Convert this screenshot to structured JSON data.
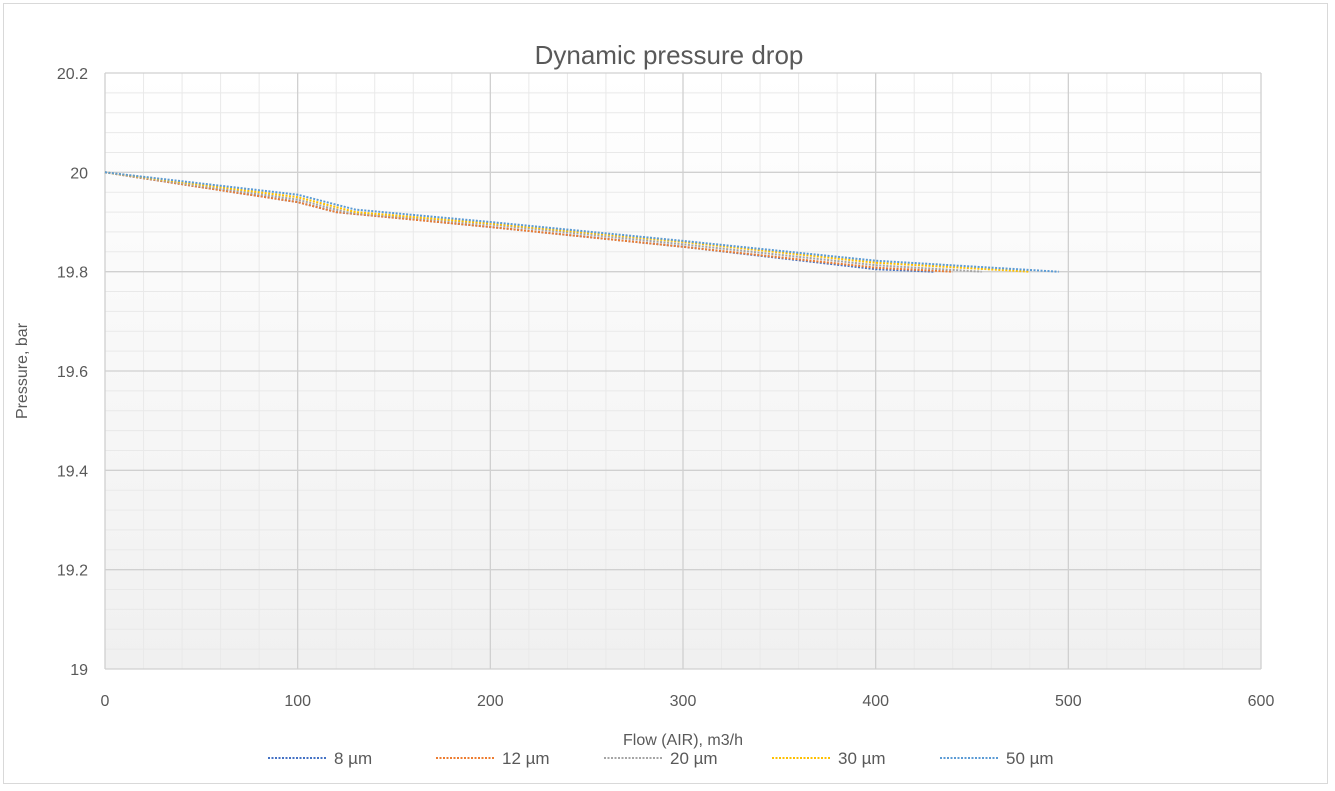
{
  "chart_data": {
    "type": "line",
    "title": "Dynamic pressure drop",
    "xlabel": "Flow (AIR), m3/h",
    "ylabel": "Pressure, bar",
    "xlim": [
      0,
      600
    ],
    "ylim": [
      19,
      20.2
    ],
    "x_ticks": [
      "0",
      "100",
      "200",
      "300",
      "400",
      "500",
      "600"
    ],
    "y_ticks": [
      "19",
      "19.2",
      "19.4",
      "19.6",
      "19.8",
      "20",
      "20.2"
    ],
    "grid": true,
    "legend_position": "bottom",
    "line_style": "dotted",
    "series": [
      {
        "name": "8 µm",
        "color": "#4472c4",
        "x": [
          0,
          100,
          120,
          200,
          300,
          400,
          430
        ],
        "y": [
          20,
          19.94,
          19.92,
          19.89,
          19.85,
          19.805,
          19.8
        ]
      },
      {
        "name": "12 µm",
        "color": "#ed7d31",
        "x": [
          0,
          100,
          120,
          200,
          300,
          400,
          440
        ],
        "y": [
          20,
          19.94,
          19.92,
          19.89,
          19.85,
          19.808,
          19.8
        ]
      },
      {
        "name": "20 µm",
        "color": "#a5a5a5",
        "x": [
          0,
          100,
          125,
          200,
          300,
          400,
          455
        ],
        "y": [
          20,
          19.945,
          19.92,
          19.895,
          19.855,
          19.813,
          19.8
        ]
      },
      {
        "name": "30 µm",
        "color": "#ffc000",
        "x": [
          0,
          100,
          130,
          200,
          300,
          400,
          480
        ],
        "y": [
          20,
          19.95,
          19.92,
          19.897,
          19.86,
          19.818,
          19.8
        ]
      },
      {
        "name": "50 µm",
        "color": "#5b9bd5",
        "x": [
          0,
          100,
          130,
          200,
          300,
          400,
          495
        ],
        "y": [
          20,
          19.955,
          19.925,
          19.9,
          19.862,
          19.822,
          19.8
        ]
      }
    ]
  }
}
